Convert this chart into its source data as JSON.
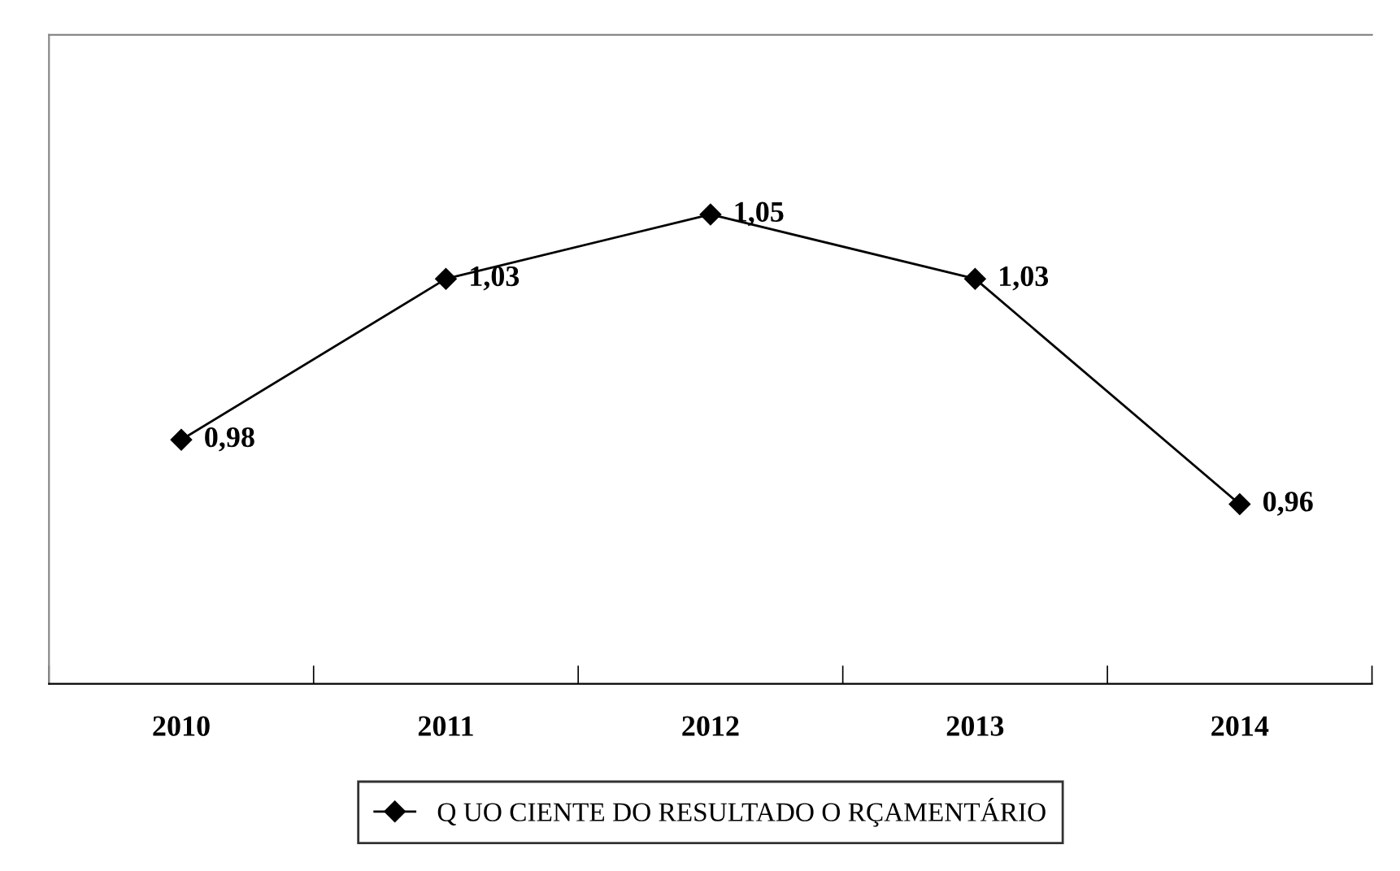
{
  "chart_data": {
    "type": "line",
    "categories": [
      "2010",
      "2011",
      "2012",
      "2013",
      "2014"
    ],
    "series": [
      {
        "name": "Q UO CIENTE DO RESULTADO O RÇAMENTÁRIO",
        "color": "#000000",
        "values": [
          0.98,
          1.03,
          1.05,
          1.03,
          0.96
        ],
        "value_labels": [
          "0,98",
          "1,03",
          "1,05",
          "1,03",
          "0,96"
        ]
      }
    ],
    "marker": "diamond",
    "line_style": "solid",
    "grid": false,
    "legend": "bottom",
    "tick_labels": "x"
  }
}
